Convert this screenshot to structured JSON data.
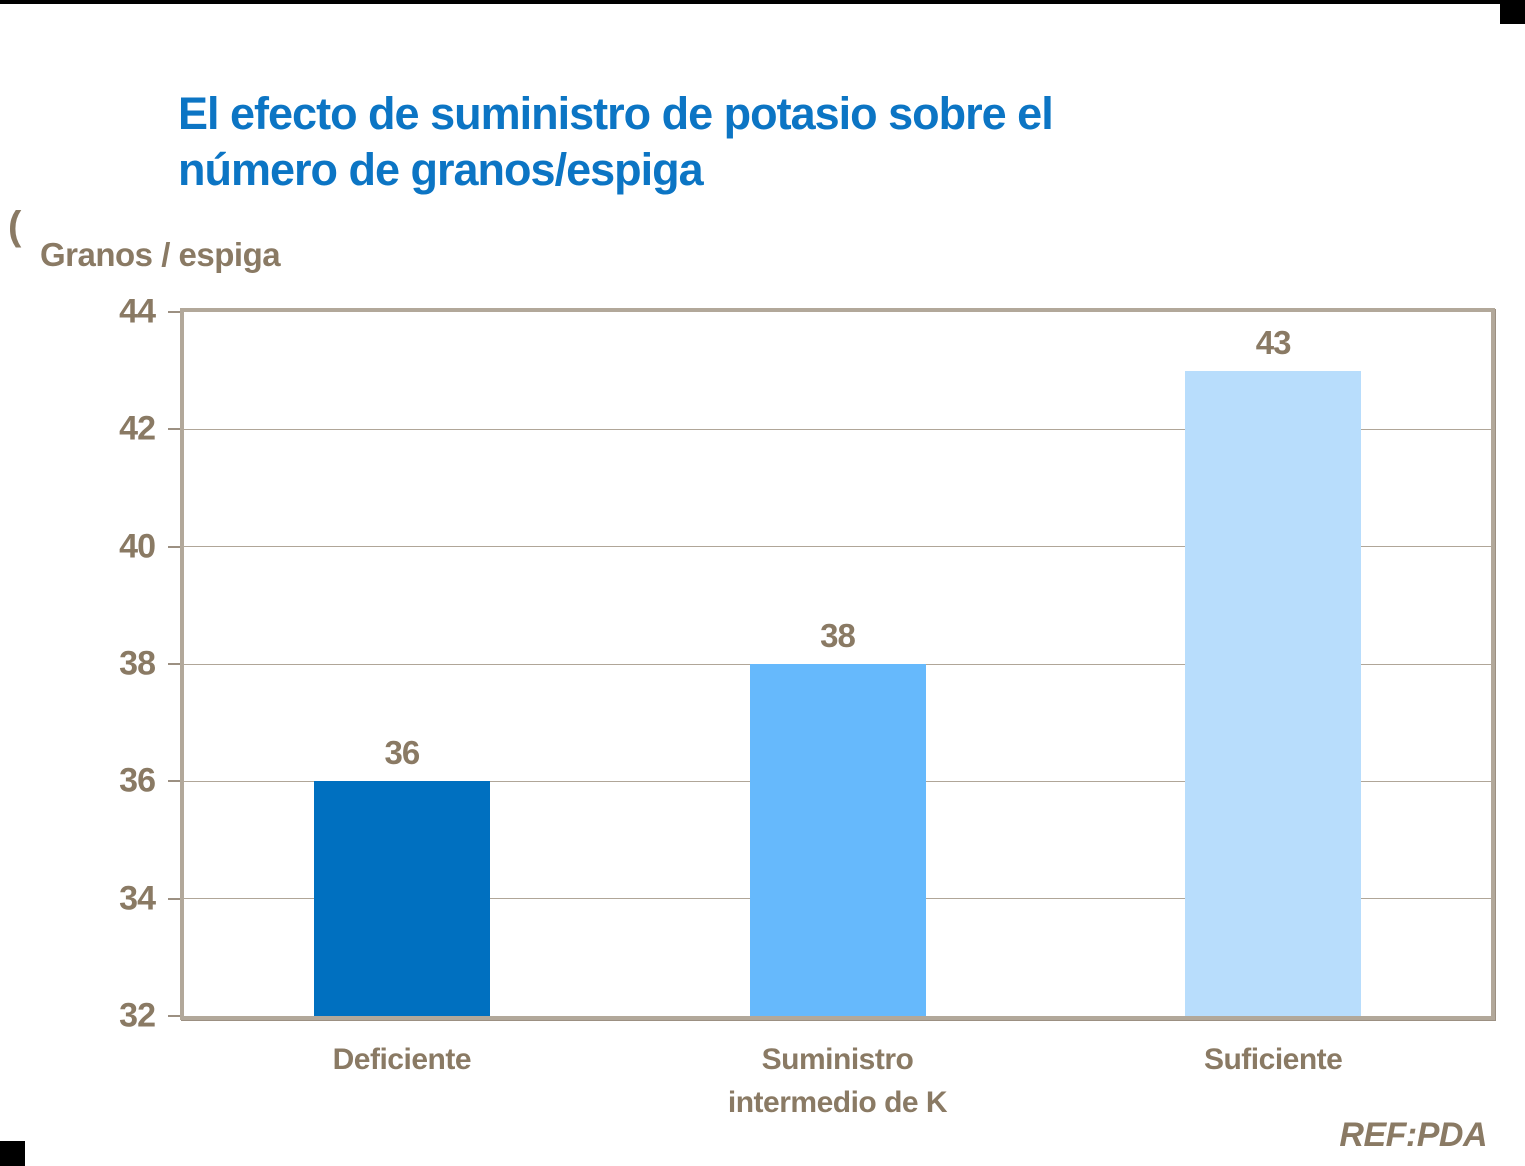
{
  "slide": {
    "title_lines": [
      "El efecto de suministro de potasio sobre el",
      "número de granos/espiga"
    ],
    "title_color": "#0c75c4",
    "stray_char": "(",
    "ref_label": "REF:PDA"
  },
  "chart_data": {
    "type": "bar",
    "title": "El efecto de suministro de potasio sobre el número de granos/espiga",
    "ylabel": "Granos / espiga",
    "xlabel": "",
    "categories": [
      "Deficiente",
      "Suministro\nintermedio de K",
      "Suficiente"
    ],
    "values": [
      36,
      38,
      43
    ],
    "data_labels": [
      "36",
      "38",
      "43"
    ],
    "bar_colors": [
      "#0070c0",
      "#66b9fc",
      "#b8ddfc"
    ],
    "ylim": [
      32,
      44
    ],
    "yticks": [
      32,
      34,
      36,
      38,
      40,
      42,
      44
    ],
    "grid": true,
    "legend": "none",
    "annotations": [
      "REF:PDA"
    ],
    "colors": {
      "axis_text": "#8a7a64",
      "gridline": "#b0a698",
      "plot_border": "#b2a89a",
      "tick_mark": "#9c9082"
    }
  }
}
